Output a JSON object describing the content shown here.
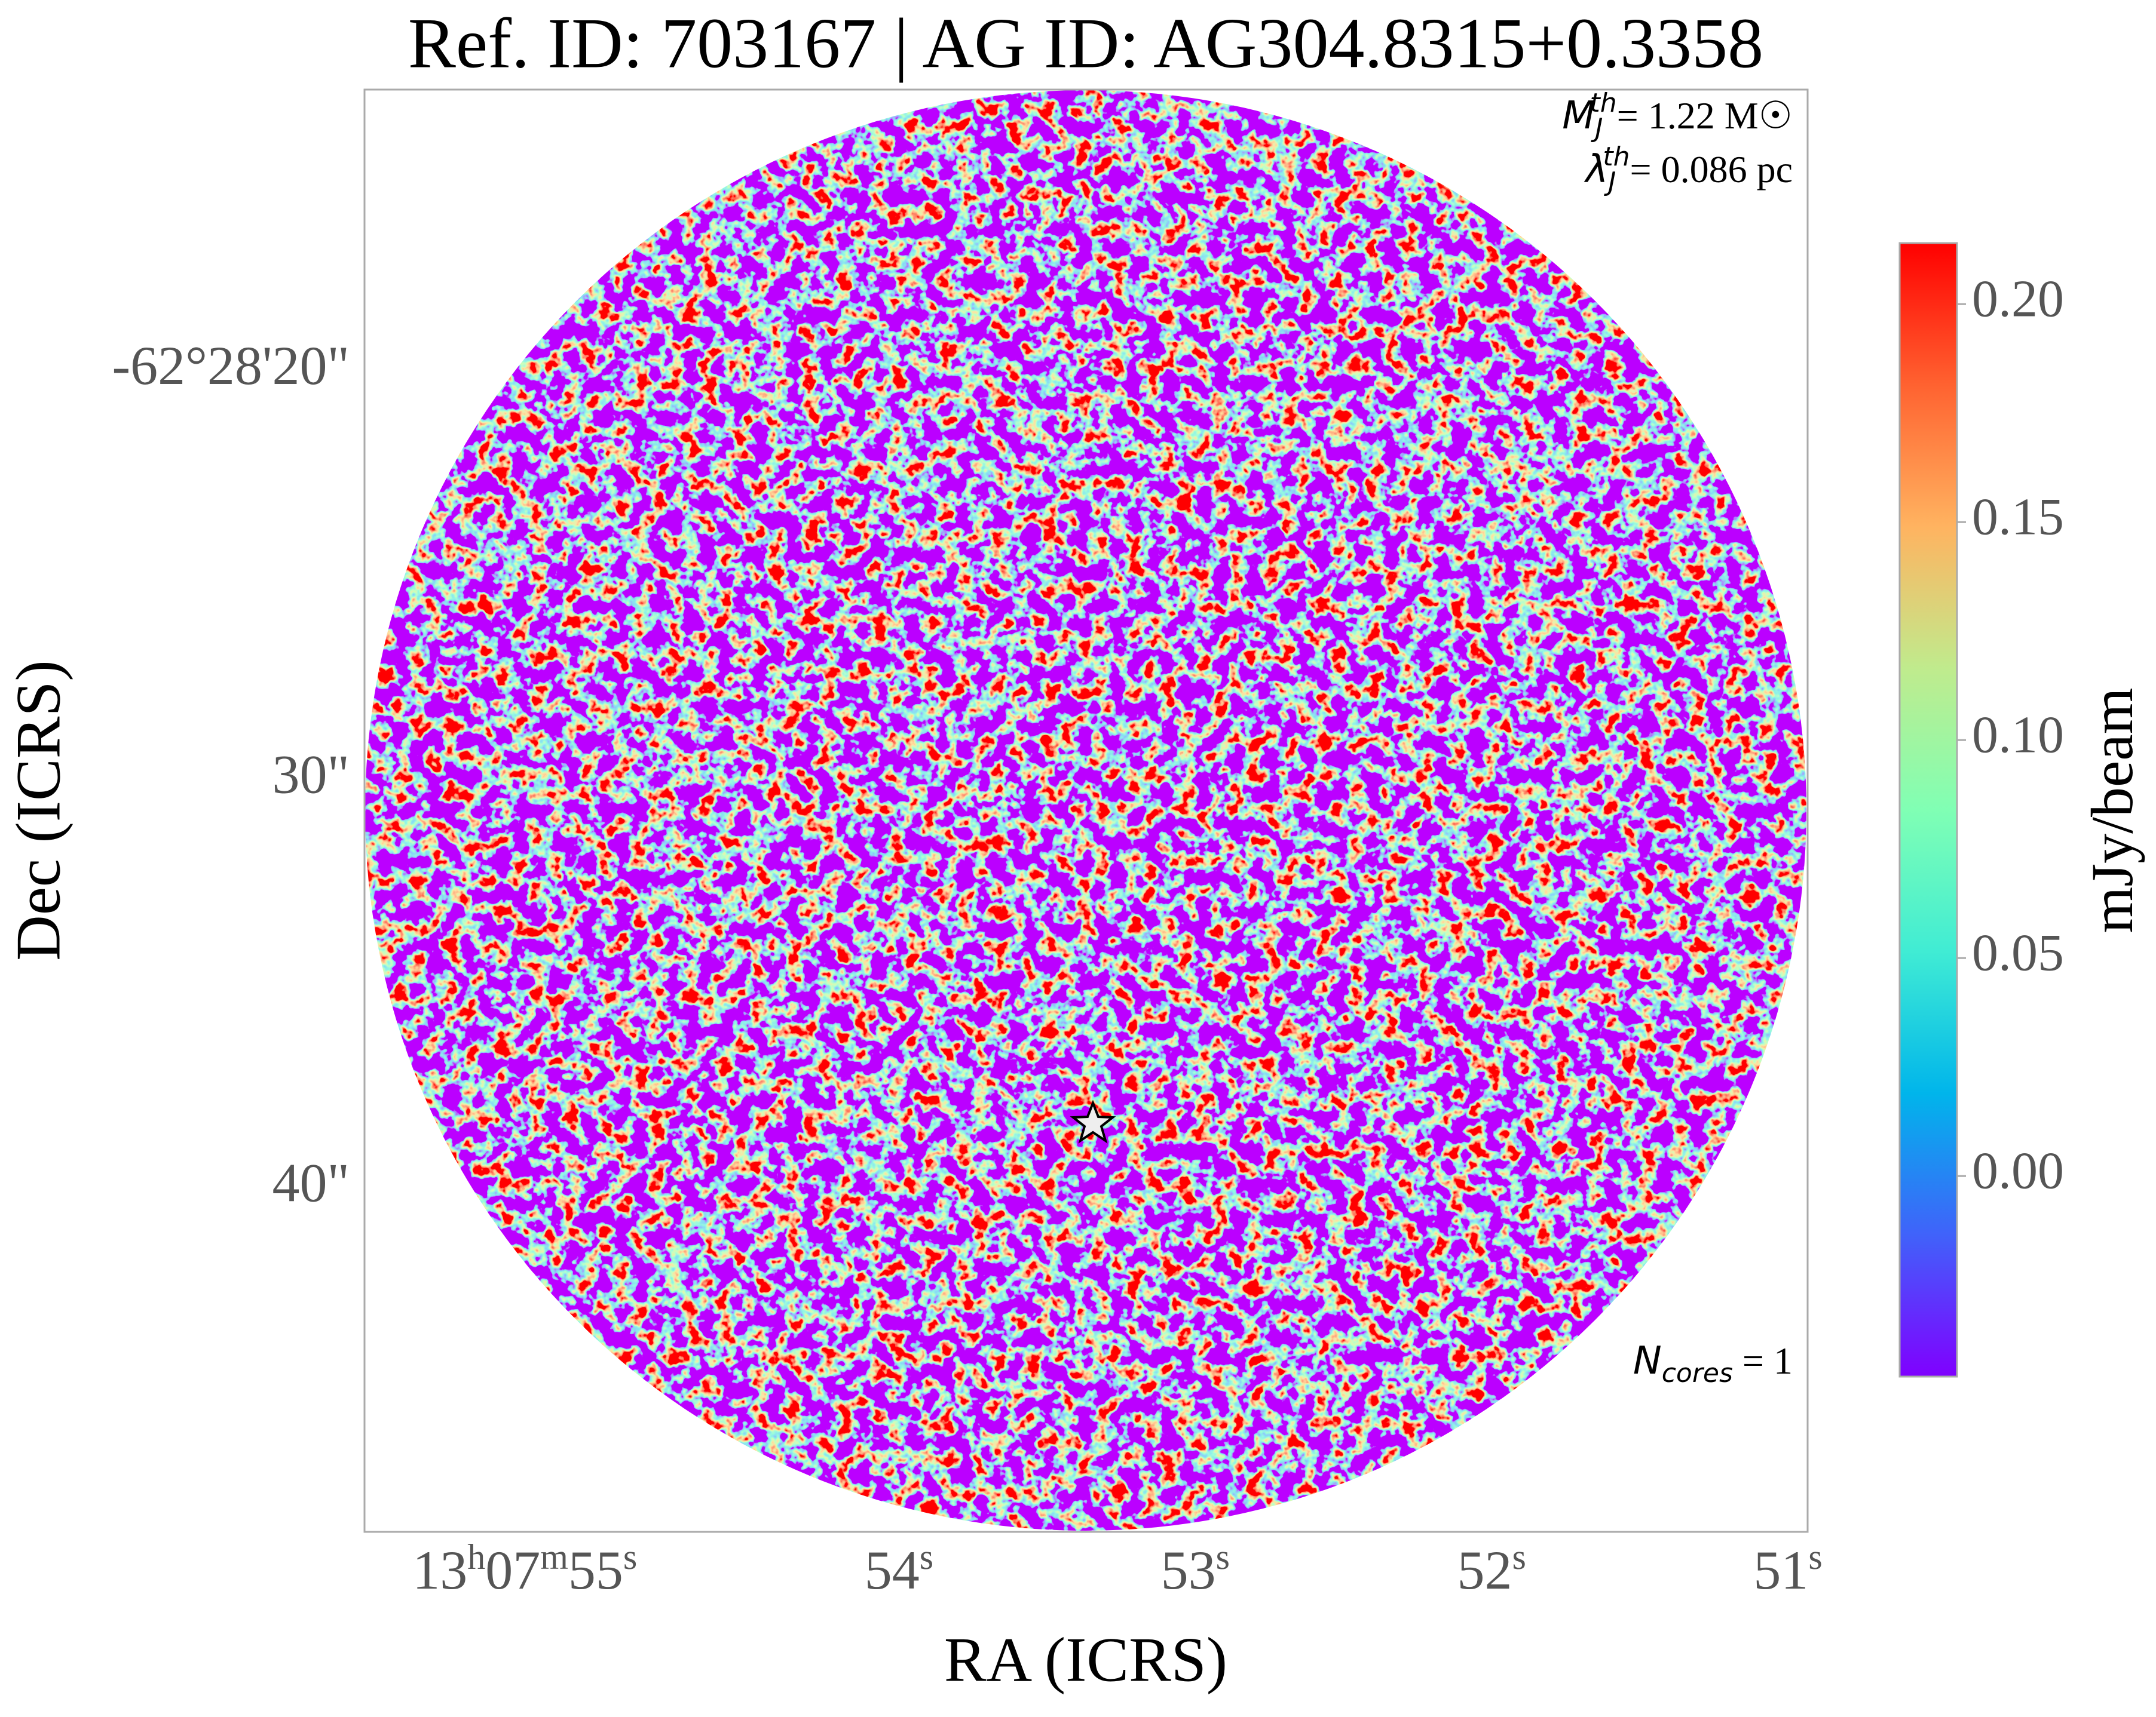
{
  "chart_data": {
    "type": "image",
    "title": "Ref. ID: 703167 | AG ID: AG304.8315+0.3358",
    "xlabel": "RA (ICRS)",
    "ylabel": "Dec (ICRS)",
    "xlim": [
      55.92,
      51.05
    ],
    "xticks": [
      {
        "value": 55,
        "label": "13h07m55s"
      },
      {
        "value": 54,
        "label": "54s"
      },
      {
        "value": 53,
        "label": "53s"
      },
      {
        "value": 52,
        "label": "52s"
      },
      {
        "value": 51,
        "label": "51s"
      }
    ],
    "ylim": [
      48.4,
      13.1
    ],
    "yticks": [
      {
        "value": 20,
        "label": "-62°28'20\""
      },
      {
        "value": 30,
        "label": "30\""
      },
      {
        "value": 40,
        "label": "40\""
      }
    ],
    "colorbar": {
      "label": "mJy/beam",
      "clim": [
        -0.046,
        0.214
      ],
      "colors": [
        "#8000ff",
        "#4062fa",
        "#00b5eb",
        "#40ecd4",
        "#80ffb4",
        "#c0eb8d",
        "#ffb360",
        "#ff6230",
        "#ff0000"
      ],
      "ticks": [
        {
          "value": 0,
          "label": "0.00"
        },
        {
          "value": 0.05,
          "label": "0.05"
        },
        {
          "value": 0.1,
          "label": "0.10"
        },
        {
          "value": 0.15,
          "label": "0.15"
        },
        {
          "value": 0.2,
          "label": "0.20"
        }
      ]
    },
    "annotations": [
      {
        "symbol": "M",
        "sub": "J",
        "sup": "th",
        "text": "= 1.22 M☉"
      },
      {
        "symbol": "λ",
        "sub": "J",
        "sup": "th",
        "text": "= 0.086 pc"
      },
      {
        "symbol": "N",
        "sub": "cores",
        "text": " = 1"
      }
    ]
  }
}
